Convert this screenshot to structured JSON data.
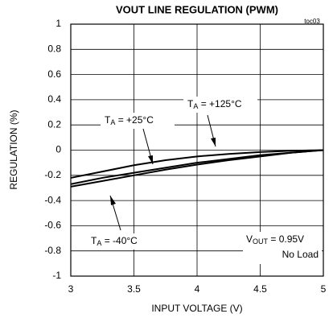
{
  "chart_data": {
    "type": "line",
    "title": "VOUT LINE REGULATION (PWM)",
    "code": "toc03",
    "xlabel": "INPUT VOLTAGE (V)",
    "ylabel": "REGULATION (%)",
    "x": [
      3,
      3.25,
      3.5,
      3.75,
      4,
      4.25,
      4.5,
      4.75,
      5
    ],
    "series": [
      {
        "name": "TA = +125°C",
        "color": "#000000",
        "values": [
          -0.22,
          -0.17,
          -0.12,
          -0.08,
          -0.05,
          -0.03,
          -0.015,
          -0.005,
          0
        ]
      },
      {
        "name": "TA = +25°C",
        "color": "#000000",
        "values": [
          -0.27,
          -0.22,
          -0.18,
          -0.14,
          -0.1,
          -0.07,
          -0.04,
          -0.02,
          0
        ]
      },
      {
        "name": "TA = -40°C",
        "color": "#000000",
        "values": [
          -0.29,
          -0.245,
          -0.2,
          -0.155,
          -0.115,
          -0.08,
          -0.05,
          -0.02,
          0
        ]
      }
    ],
    "annotations": [
      "VOUT = 0.95V",
      "No Load"
    ],
    "xlim": [
      3,
      5
    ],
    "xticks": [
      3,
      3.5,
      4,
      4.5,
      5
    ],
    "ylim": [
      -1,
      1
    ],
    "yticks": [
      -1,
      -0.8,
      -0.6,
      -0.4,
      -0.2,
      0,
      0.2,
      0.4,
      0.6,
      0.8,
      1
    ],
    "grid": true
  }
}
